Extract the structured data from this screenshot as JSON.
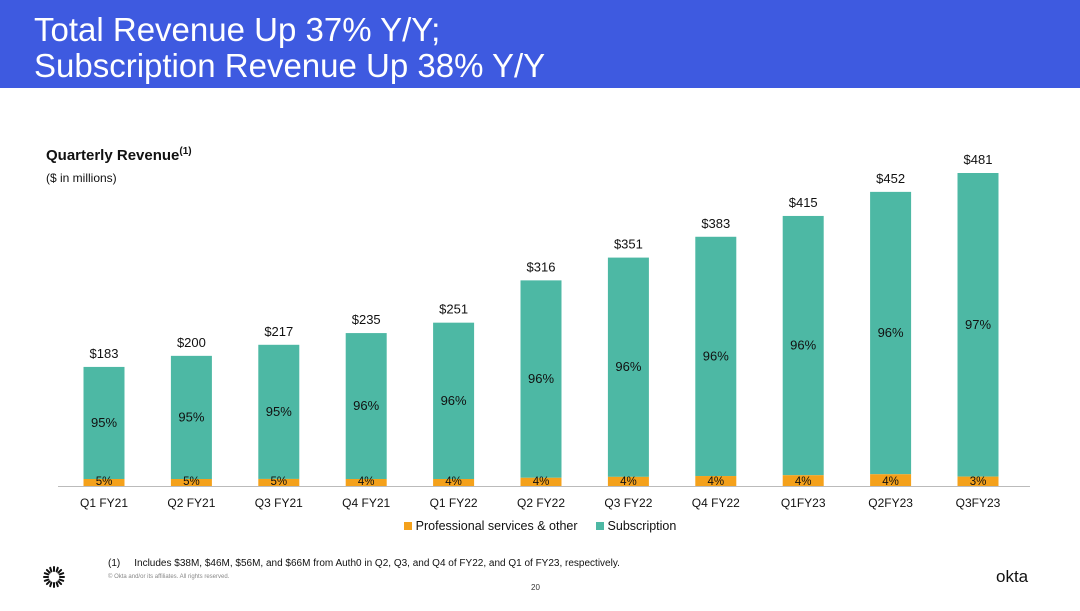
{
  "slide": {
    "title_line1": "Total Revenue Up 37% Y/Y;",
    "title_line2": "Subscription Revenue Up 38% Y/Y",
    "chart_title": "Quarterly Revenue",
    "chart_title_note": "(1)",
    "chart_subtitle": "($ in millions)",
    "footnote_number": "(1)",
    "footnote_text": "Includes $38M, $46M, $56M, and $66M from Auth0 in Q2, Q3, and Q4 of FY22, and Q1 of FY23, respectively.",
    "copyright": "© Okta and/or its affiliates. All rights reserved.",
    "page_number": "20",
    "logo_text": "okta",
    "sun_icon": "okta-sunburst-icon"
  },
  "colors": {
    "banner": "#3e5ae0",
    "subscription": "#4db8a4",
    "professional_services": "#f4a11b"
  },
  "chart_data": {
    "type": "bar",
    "stacked": true,
    "categories": [
      "Q1 FY21",
      "Q2 FY21",
      "Q3 FY21",
      "Q4 FY21",
      "Q1 FY22",
      "Q2 FY22",
      "Q3 FY22",
      "Q4 FY22",
      "Q1FY23",
      "Q2FY23",
      "Q3FY23"
    ],
    "totals": [
      183,
      200,
      217,
      235,
      251,
      316,
      351,
      383,
      415,
      452,
      481
    ],
    "total_labels": [
      "$183",
      "$200",
      "$217",
      "$235",
      "$251",
      "$316",
      "$351",
      "$383",
      "$415",
      "$452",
      "$481"
    ],
    "series": [
      {
        "name": "Professional services & other",
        "color": "#f4a11b",
        "percent_labels": [
          "5%",
          "5%",
          "5%",
          "4%",
          "4%",
          "4%",
          "4%",
          "4%",
          "4%",
          "4%",
          "3%"
        ]
      },
      {
        "name": "Subscription",
        "color": "#4db8a4",
        "percent_labels": [
          "95%",
          "95%",
          "95%",
          "96%",
          "96%",
          "96%",
          "96%",
          "96%",
          "96%",
          "96%",
          "97%"
        ]
      }
    ],
    "ylim": [
      0,
      481
    ],
    "grid": false,
    "legend": "bottom-center"
  }
}
